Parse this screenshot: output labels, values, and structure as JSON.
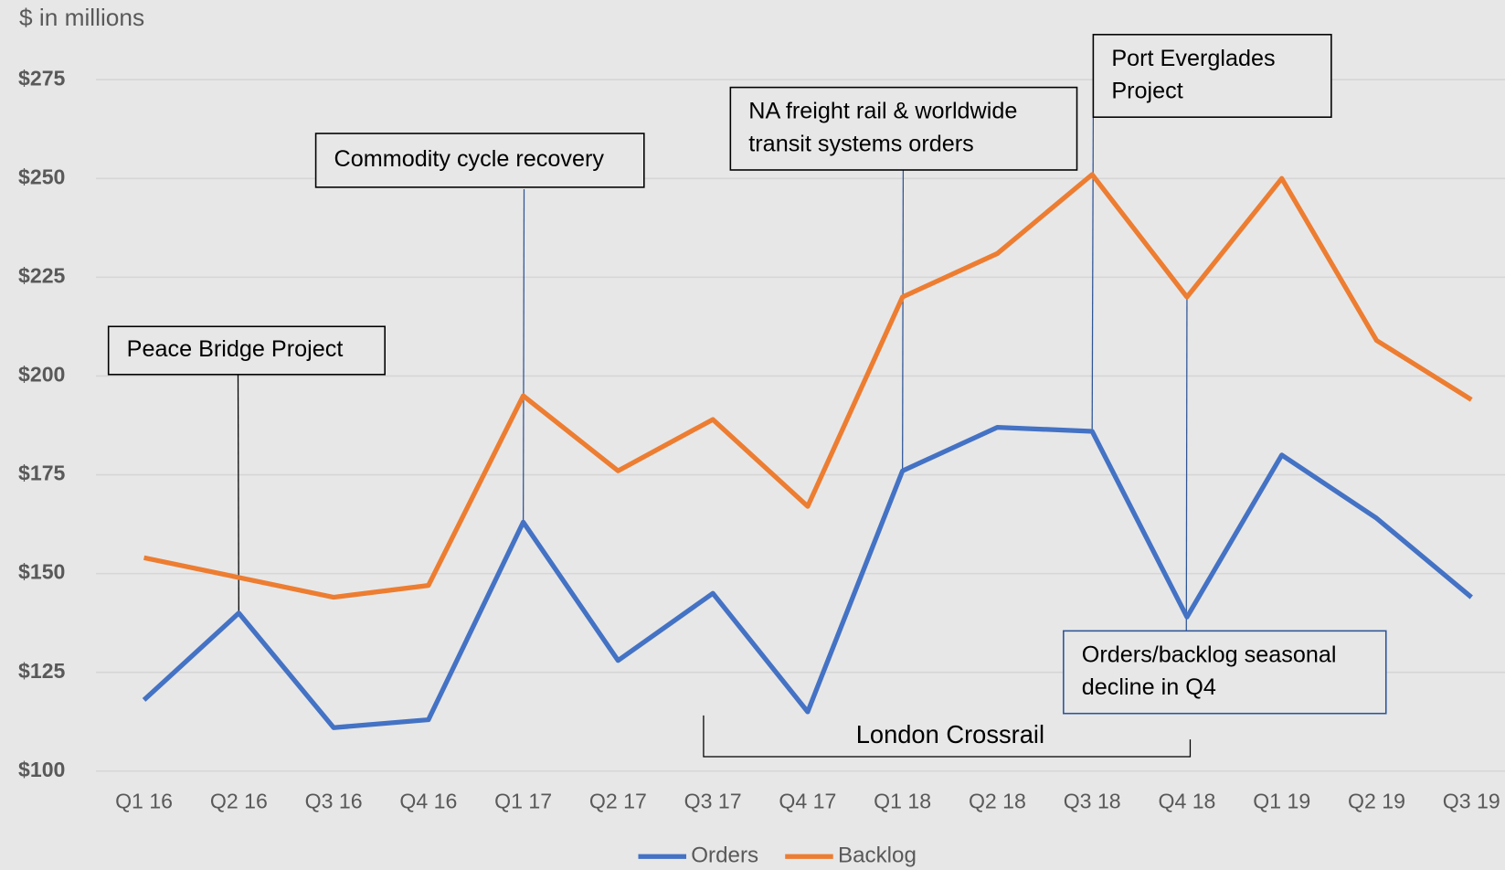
{
  "chart_data": {
    "type": "line",
    "axis_title": "$ in millions",
    "categories": [
      "Q1 16",
      "Q2 16",
      "Q3 16",
      "Q4 16",
      "Q1 17",
      "Q2 17",
      "Q3 17",
      "Q4 17",
      "Q1 18",
      "Q2 18",
      "Q3 18",
      "Q4 18",
      "Q1 19",
      "Q2 19",
      "Q3 19"
    ],
    "series": [
      {
        "name": "Orders",
        "color": "#4472c4",
        "values": [
          118,
          140,
          111,
          113,
          163,
          128,
          145,
          115,
          176,
          187,
          186,
          139,
          180,
          164,
          144
        ]
      },
      {
        "name": "Backlog",
        "color": "#ed7d31",
        "values": [
          154,
          149,
          144,
          147,
          195,
          176,
          189,
          167,
          220,
          231,
          251,
          220,
          250,
          209,
          194
        ]
      }
    ],
    "ylim": [
      100,
      275
    ],
    "yticks": [
      {
        "value": 100,
        "label": "$100"
      },
      {
        "value": 125,
        "label": "$125"
      },
      {
        "value": 150,
        "label": "$150"
      },
      {
        "value": 175,
        "label": "$175"
      },
      {
        "value": 200,
        "label": "$200"
      },
      {
        "value": 225,
        "label": "$225"
      },
      {
        "value": 250,
        "label": "$250"
      },
      {
        "value": 275,
        "label": "$275"
      }
    ],
    "grid": true,
    "legend": "bottom",
    "annotations": [
      {
        "text": [
          "Peace Bridge Project"
        ]
      },
      {
        "text": [
          "Commodity cycle recovery"
        ]
      },
      {
        "text": [
          "NA freight rail & worldwide",
          "transit systems orders"
        ]
      },
      {
        "text": [
          "Port Everglades",
          "Project"
        ]
      },
      {
        "text": [
          "Orders/backlog seasonal",
          "decline in Q4"
        ]
      },
      {
        "text": [
          "London Crossrail"
        ]
      }
    ]
  }
}
